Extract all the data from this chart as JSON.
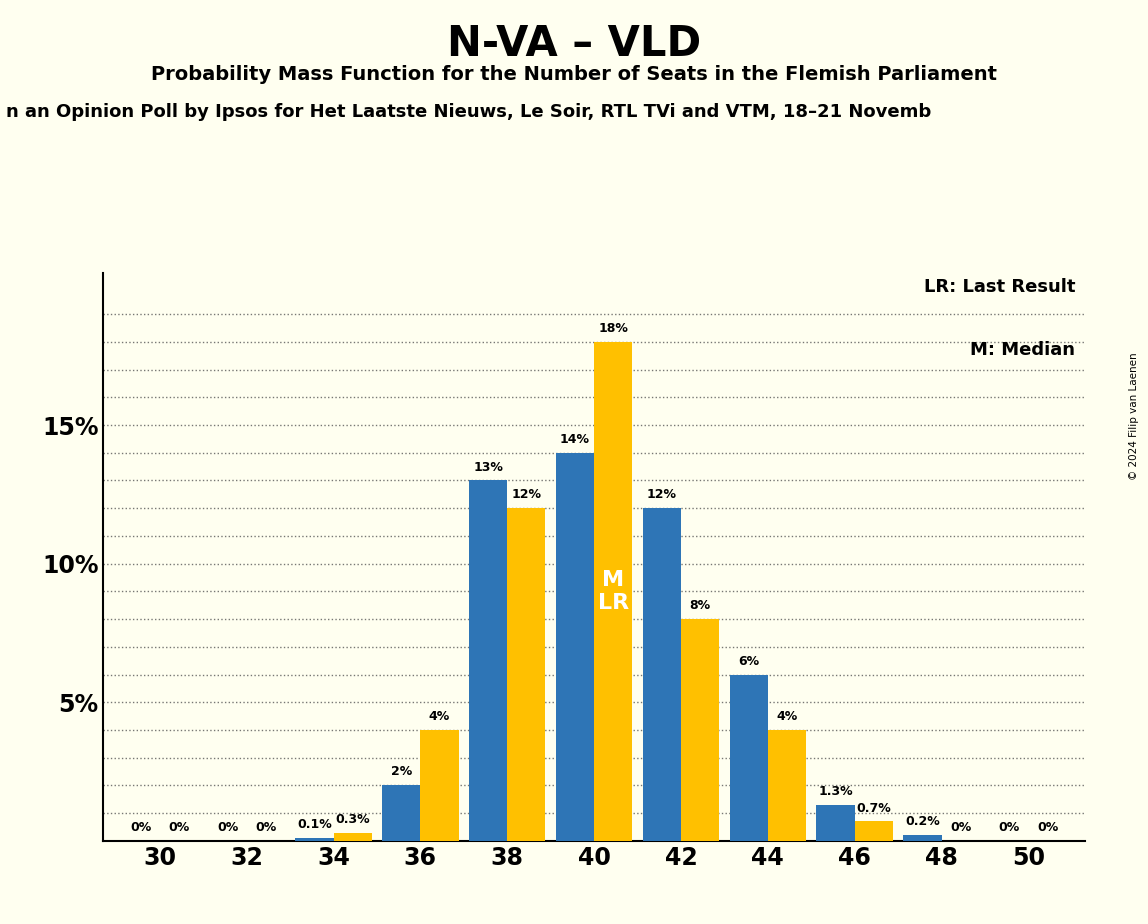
{
  "title": "N-VA – VLD",
  "subtitle1": "Probability Mass Function for the Number of Seats in the Flemish Parliament",
  "subtitle2": "n an Opinion Poll by Ipsos for Het Laatste Nieuws, Le Soir, RTL TVi and VTM, 18–21 Novemb",
  "copyright": "© 2024 Filip van Laenen",
  "seats": [
    30,
    32,
    34,
    36,
    38,
    40,
    42,
    44,
    46,
    48,
    50
  ],
  "blue_values": [
    0.0,
    0.0,
    0.001,
    0.02,
    0.13,
    0.14,
    0.12,
    0.06,
    0.013,
    0.002,
    0.0
  ],
  "gold_values": [
    0.0,
    0.0,
    0.003,
    0.04,
    0.12,
    0.18,
    0.08,
    0.04,
    0.007,
    0.0,
    0.0
  ],
  "blue_labels": [
    "0%",
    "0%",
    "0.1%",
    "2%",
    "13%",
    "14%",
    "12%",
    "6%",
    "1.3%",
    "0.2%",
    "0%"
  ],
  "gold_labels": [
    "0%",
    "0%",
    "0.3%",
    "4%",
    "12%",
    "18%",
    "8%",
    "4%",
    "0.7%",
    "0%",
    "0%"
  ],
  "blue_color": "#2E75B6",
  "gold_color": "#FFC000",
  "background_color": "#FFFFF0",
  "yticks_major": [
    0.05,
    0.1,
    0.15
  ],
  "yticks_minor": [
    0.01,
    0.02,
    0.03,
    0.04,
    0.06,
    0.07,
    0.08,
    0.09,
    0.11,
    0.12,
    0.13,
    0.14,
    0.16,
    0.17,
    0.18,
    0.19
  ],
  "ylabel_ticks": [
    "5%",
    "10%",
    "15%"
  ],
  "ylim": [
    0,
    0.205
  ],
  "legend_lr": "LR: Last Result",
  "legend_m": "M: Median"
}
